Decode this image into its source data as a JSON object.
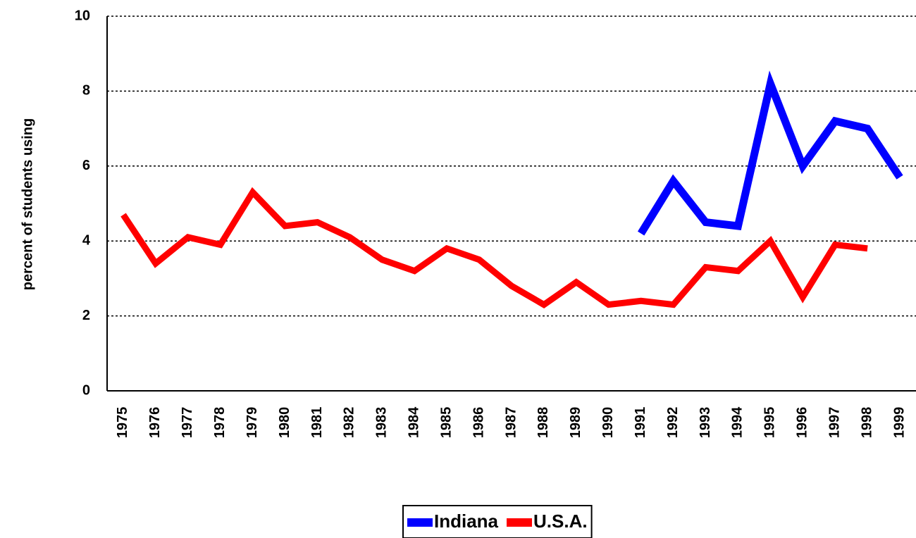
{
  "chart_data": {
    "type": "line",
    "y_label": "percent of students using",
    "categories": [
      "1975",
      "1976",
      "1977",
      "1978",
      "1979",
      "1980",
      "1981",
      "1982",
      "1983",
      "1984",
      "1985",
      "1986",
      "1987",
      "1988",
      "1989",
      "1990",
      "1991",
      "1992",
      "1993",
      "1994",
      "1995",
      "1996",
      "1997",
      "1998",
      "1999"
    ],
    "series": [
      {
        "name": "Indiana",
        "color": "#0000ff",
        "values": [
          null,
          null,
          null,
          null,
          null,
          null,
          null,
          null,
          null,
          null,
          null,
          null,
          null,
          null,
          null,
          null,
          4.2,
          5.6,
          4.5,
          4.4,
          8.2,
          6.0,
          7.2,
          7.0,
          5.7
        ]
      },
      {
        "name": "U.S.A.",
        "color": "#ff0000",
        "values": [
          4.7,
          3.4,
          4.1,
          3.9,
          5.3,
          4.4,
          4.5,
          4.1,
          3.5,
          3.2,
          3.8,
          3.5,
          2.8,
          2.3,
          2.9,
          2.3,
          2.4,
          2.3,
          3.3,
          3.2,
          4.0,
          2.5,
          3.9,
          3.8,
          null
        ]
      }
    ],
    "ylim": [
      0,
      10
    ],
    "yticks": [
      0,
      2,
      4,
      6,
      8,
      10
    ],
    "grid": true,
    "legend": "bottom"
  }
}
